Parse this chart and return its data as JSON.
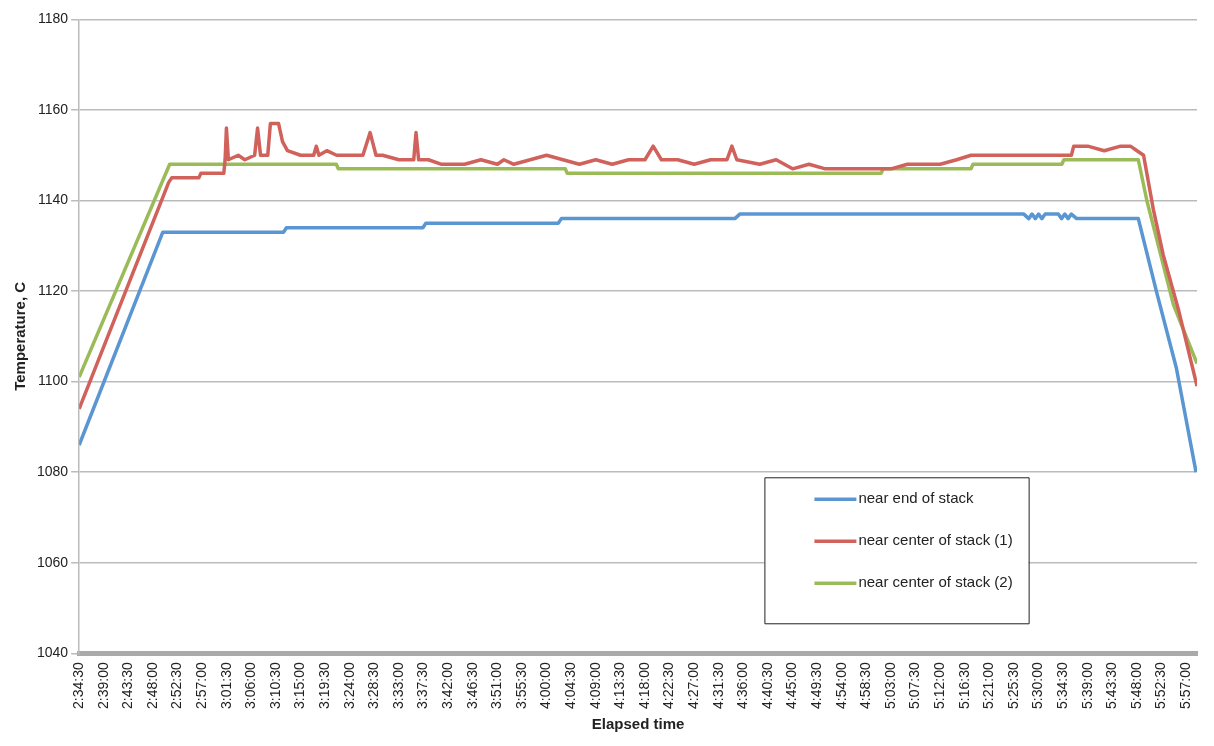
{
  "chart_data": {
    "type": "line",
    "xlabel": "Elapsed time",
    "ylabel": "Temperature, C",
    "xlim": [
      2.575,
      5.983
    ],
    "ylim": [
      1040,
      1180
    ],
    "yticks": [
      1040,
      1060,
      1080,
      1100,
      1120,
      1140,
      1160,
      1180
    ],
    "xticks": [
      {
        "value": 2.575,
        "label": "2:34:30"
      },
      {
        "value": 2.65,
        "label": "2:39:00"
      },
      {
        "value": 2.725,
        "label": "2:43:30"
      },
      {
        "value": 2.8,
        "label": "2:48:00"
      },
      {
        "value": 2.875,
        "label": "2:52:30"
      },
      {
        "value": 2.95,
        "label": "2:57:00"
      },
      {
        "value": 3.025,
        "label": "3:01:30"
      },
      {
        "value": 3.1,
        "label": "3:06:00"
      },
      {
        "value": 3.175,
        "label": "3:10:30"
      },
      {
        "value": 3.25,
        "label": "3:15:00"
      },
      {
        "value": 3.325,
        "label": "3:19:30"
      },
      {
        "value": 3.4,
        "label": "3:24:00"
      },
      {
        "value": 3.475,
        "label": "3:28:30"
      },
      {
        "value": 3.55,
        "label": "3:33:00"
      },
      {
        "value": 3.625,
        "label": "3:37:30"
      },
      {
        "value": 3.7,
        "label": "3:42:00"
      },
      {
        "value": 3.775,
        "label": "3:46:30"
      },
      {
        "value": 3.85,
        "label": "3:51:00"
      },
      {
        "value": 3.925,
        "label": "3:55:30"
      },
      {
        "value": 4,
        "label": "4:00:00"
      },
      {
        "value": 4.075,
        "label": "4:04:30"
      },
      {
        "value": 4.15,
        "label": "4:09:00"
      },
      {
        "value": 4.225,
        "label": "4:13:30"
      },
      {
        "value": 4.3,
        "label": "4:18:00"
      },
      {
        "value": 4.375,
        "label": "4:22:30"
      },
      {
        "value": 4.45,
        "label": "4:27:00"
      },
      {
        "value": 4.525,
        "label": "4:31:30"
      },
      {
        "value": 4.6,
        "label": "4:36:00"
      },
      {
        "value": 4.675,
        "label": "4:40:30"
      },
      {
        "value": 4.75,
        "label": "4:45:00"
      },
      {
        "value": 4.825,
        "label": "4:49:30"
      },
      {
        "value": 4.9,
        "label": "4:54:00"
      },
      {
        "value": 4.975,
        "label": "4:58:30"
      },
      {
        "value": 5.05,
        "label": "5:03:00"
      },
      {
        "value": 5.125,
        "label": "5:07:30"
      },
      {
        "value": 5.2,
        "label": "5:12:00"
      },
      {
        "value": 5.275,
        "label": "5:16:30"
      },
      {
        "value": 5.35,
        "label": "5:21:00"
      },
      {
        "value": 5.425,
        "label": "5:25:30"
      },
      {
        "value": 5.5,
        "label": "5:30:00"
      },
      {
        "value": 5.575,
        "label": "5:34:30"
      },
      {
        "value": 5.65,
        "label": "5:39:00"
      },
      {
        "value": 5.725,
        "label": "5:43:30"
      },
      {
        "value": 5.8,
        "label": "5:48:00"
      },
      {
        "value": 5.875,
        "label": "5:52:30"
      },
      {
        "value": 5.95,
        "label": "5:57:00"
      }
    ],
    "grid": "y",
    "legend": "bottom right",
    "series": [
      {
        "name": "near end of stack",
        "color": "#5a96d2",
        "x": [
          2.575,
          2.83,
          3.198,
          3.207,
          3.623,
          3.632,
          4.036,
          4.045,
          4.574,
          4.589,
          5.455,
          5.47,
          5.48,
          5.49,
          5.5,
          5.51,
          5.52,
          5.56,
          5.57,
          5.58,
          5.59,
          5.6,
          5.616,
          5.804,
          5.859,
          5.92,
          5.98
        ],
        "values": [
          1086,
          1133,
          1133,
          1134,
          1134,
          1135,
          1135,
          1136,
          1136,
          1137,
          1137,
          1136,
          1137,
          1136,
          1137,
          1136,
          1137,
          1137,
          1136,
          1137,
          1136,
          1137,
          1136,
          1136,
          1120,
          1103,
          1080
        ]
      },
      {
        "name": "near center of stack (1)",
        "color": "#d0625b",
        "x": [
          2.575,
          2.848,
          2.857,
          2.94,
          2.946,
          3.016,
          3.02,
          3.024,
          3.03,
          3.06,
          3.08,
          3.11,
          3.119,
          3.128,
          3.15,
          3.158,
          3.183,
          3.195,
          3.21,
          3.25,
          3.29,
          3.298,
          3.306,
          3.33,
          3.36,
          3.4,
          3.44,
          3.462,
          3.48,
          3.5,
          3.55,
          3.595,
          3.602,
          3.61,
          3.64,
          3.68,
          3.75,
          3.8,
          3.85,
          3.87,
          3.9,
          3.95,
          4.0,
          4.05,
          4.1,
          4.15,
          4.2,
          4.25,
          4.3,
          4.325,
          4.35,
          4.4,
          4.45,
          4.5,
          4.55,
          4.565,
          4.58,
          4.65,
          4.7,
          4.75,
          4.8,
          4.85,
          4.9,
          4.95,
          5.0,
          5.05,
          5.1,
          5.15,
          5.2,
          5.25,
          5.294,
          5.3,
          5.4,
          5.5,
          5.6,
          5.607,
          5.65,
          5.7,
          5.75,
          5.78,
          5.8,
          5.82,
          5.85,
          5.88,
          5.926,
          5.983
        ],
        "values": [
          1094,
          1144,
          1145,
          1145,
          1146,
          1146,
          1149,
          1156,
          1149,
          1150,
          1149,
          1150,
          1156,
          1150,
          1150,
          1157,
          1157,
          1153,
          1151,
          1150,
          1150,
          1152,
          1150,
          1151,
          1150,
          1150,
          1150,
          1155,
          1150,
          1150,
          1149,
          1149,
          1155,
          1149,
          1149,
          1148,
          1148,
          1149,
          1148,
          1149,
          1148,
          1149,
          1150,
          1149,
          1148,
          1149,
          1148,
          1149,
          1149,
          1152,
          1149,
          1149,
          1148,
          1149,
          1149,
          1152,
          1149,
          1148,
          1149,
          1147,
          1148,
          1147,
          1147,
          1147,
          1147,
          1147,
          1148,
          1148,
          1148,
          1149,
          1150,
          1150,
          1150,
          1150,
          1150,
          1152,
          1152,
          1151,
          1152,
          1152,
          1151,
          1150,
          1138,
          1128,
          1116,
          1099
        ]
      },
      {
        "name": "near center of stack (2)",
        "color": "#9bbb59",
        "x": [
          2.575,
          2.851,
          3.359,
          3.365,
          4.057,
          4.063,
          5.02,
          5.026,
          5.294,
          5.3,
          5.571,
          5.577,
          5.804,
          5.83,
          5.911,
          5.983
        ],
        "values": [
          1101,
          1148,
          1148,
          1147,
          1147,
          1146,
          1146,
          1147,
          1147,
          1148,
          1148,
          1149,
          1149,
          1140,
          1117,
          1104
        ]
      }
    ]
  }
}
